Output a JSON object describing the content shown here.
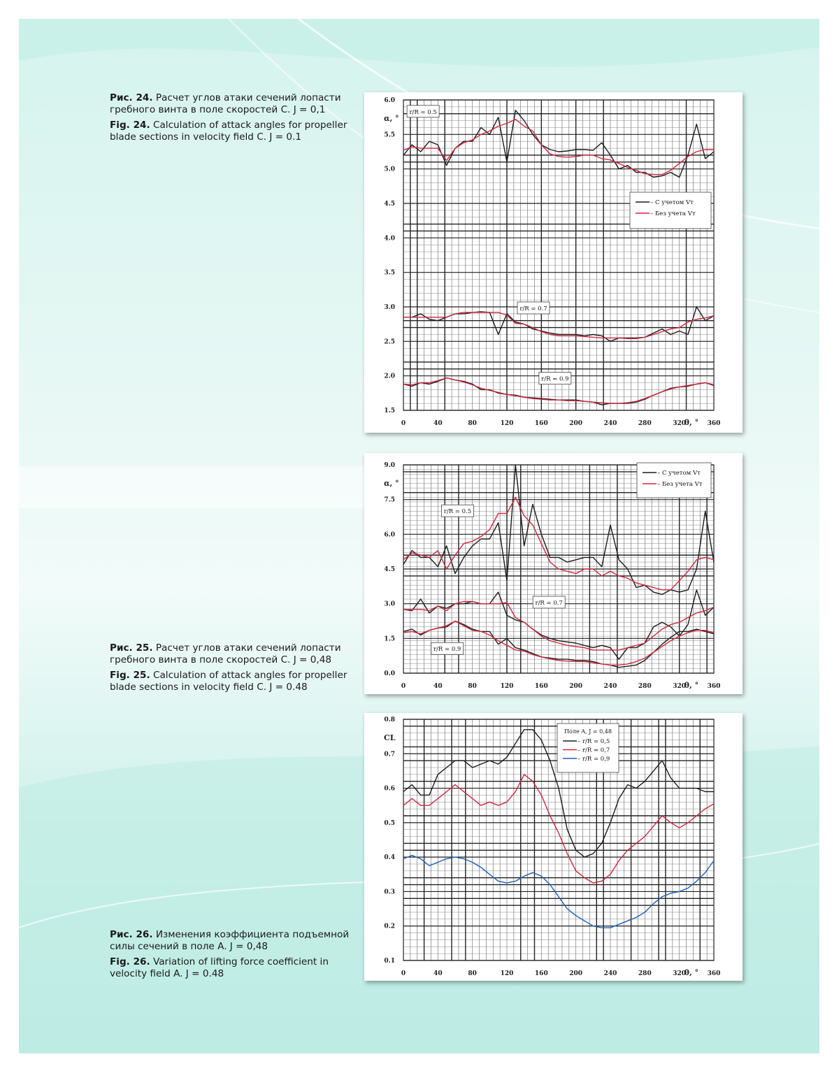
{
  "captions": [
    {
      "ru_label": "Рис. 24.",
      "ru_text": "Расчет углов атаки сечений лопасти гребного винта в поле скоростей C. J = 0,1",
      "en_label": "Fig. 24.",
      "en_text": "Calculation of attack angles for propeller blade sections in velocity field C. J = 0.1"
    },
    {
      "ru_label": "Рис. 25.",
      "ru_text": "Расчет углов атаки сечений лопасти гребного винта в поле скоростей C. J = 0,48",
      "en_label": "Fig. 25.",
      "en_text": "Calculation of attack angles for propeller blade sections in velocity field C. J = 0.48"
    },
    {
      "ru_label": "Рис. 26.",
      "ru_text": "Изменения коэффициента подъемной силы сечений в поле A. J = 0,48",
      "en_label": "Fig. 26.",
      "en_text": "Variation of lifting force coefficient in velocity field A. J = 0.48"
    }
  ],
  "chart_data": [
    {
      "type": "line",
      "title": "",
      "xlabel": "θ, °",
      "ylabel": "α, °",
      "xlim": [
        0,
        360
      ],
      "ylim": [
        1.5,
        6.0
      ],
      "grid": true,
      "xticks": [
        "0",
        "40",
        "80",
        "120",
        "160",
        "200",
        "240",
        "280",
        "320",
        "360"
      ],
      "yticks": [
        "1.5",
        "2.0",
        "2.5",
        "3.0",
        "3.5",
        "4.0",
        "4.5",
        "5.0",
        "5.5",
        "6.0"
      ],
      "legend": {
        "placement": "right",
        "entries": [
          "– С учетом Vт",
          "– Без учета Vт"
        ]
      },
      "annotations": [
        {
          "text": "r/R = 0.5",
          "x": 22,
          "y": 5.83
        },
        {
          "text": "r/R = 0.7",
          "x": 150,
          "y": 2.98
        },
        {
          "text": "r/R = 0.9",
          "x": 175,
          "y": 1.96
        }
      ],
      "x": [
        0,
        10,
        20,
        30,
        40,
        50,
        60,
        70,
        80,
        90,
        100,
        110,
        120,
        130,
        140,
        150,
        160,
        170,
        180,
        190,
        200,
        210,
        220,
        230,
        240,
        250,
        260,
        270,
        280,
        290,
        300,
        310,
        320,
        330,
        340,
        350,
        360
      ],
      "series": [
        {
          "name": "r/R = 0.5, с учетом Vт",
          "color": "#1c1c1c",
          "values": [
            5.2,
            5.35,
            5.25,
            5.4,
            5.35,
            5.05,
            5.3,
            5.4,
            5.4,
            5.6,
            5.5,
            5.75,
            5.1,
            5.85,
            5.7,
            5.5,
            5.35,
            5.28,
            5.25,
            5.26,
            5.28,
            5.28,
            5.27,
            5.38,
            5.2,
            5.0,
            5.05,
            4.95,
            4.95,
            4.88,
            4.9,
            4.95,
            4.88,
            5.2,
            5.65,
            5.15,
            5.25
          ]
        },
        {
          "name": "r/R = 0.5, без учета Vт",
          "color": "#d0283c",
          "values": [
            5.27,
            5.32,
            5.3,
            5.3,
            5.3,
            5.12,
            5.3,
            5.38,
            5.42,
            5.5,
            5.55,
            5.62,
            5.66,
            5.72,
            5.62,
            5.55,
            5.35,
            5.22,
            5.18,
            5.17,
            5.18,
            5.2,
            5.2,
            5.15,
            5.13,
            5.08,
            5.02,
            4.98,
            4.93,
            4.92,
            4.92,
            4.98,
            5.08,
            5.18,
            5.25,
            5.28,
            5.28
          ]
        },
        {
          "name": "r/R = 0.7, с учетом Vт",
          "color": "#1c1c1c",
          "values": [
            2.85,
            2.85,
            2.9,
            2.82,
            2.8,
            2.85,
            2.9,
            2.9,
            2.92,
            2.93,
            2.92,
            2.6,
            2.9,
            2.78,
            2.75,
            2.68,
            2.65,
            2.62,
            2.6,
            2.6,
            2.6,
            2.58,
            2.6,
            2.58,
            2.5,
            2.55,
            2.55,
            2.55,
            2.56,
            2.62,
            2.68,
            2.6,
            2.65,
            2.6,
            3.0,
            2.8,
            2.87
          ]
        },
        {
          "name": "r/R = 0.7, без учета Vт",
          "color": "#d0283c",
          "values": [
            2.85,
            2.85,
            2.85,
            2.85,
            2.85,
            2.85,
            2.9,
            2.92,
            2.92,
            2.92,
            2.92,
            2.92,
            2.88,
            2.76,
            2.75,
            2.7,
            2.64,
            2.6,
            2.58,
            2.58,
            2.58,
            2.57,
            2.56,
            2.55,
            2.55,
            2.55,
            2.54,
            2.54,
            2.56,
            2.6,
            2.64,
            2.68,
            2.7,
            2.78,
            2.82,
            2.84,
            2.87
          ]
        },
        {
          "name": "r/R = 0.9, с учетом Vт",
          "color": "#1c1c1c",
          "values": [
            1.88,
            1.85,
            1.9,
            1.88,
            1.92,
            1.97,
            1.94,
            1.92,
            1.88,
            1.8,
            1.8,
            1.75,
            1.73,
            1.72,
            1.69,
            1.68,
            1.67,
            1.66,
            1.65,
            1.65,
            1.65,
            1.63,
            1.62,
            1.58,
            1.6,
            1.6,
            1.6,
            1.62,
            1.66,
            1.72,
            1.77,
            1.82,
            1.84,
            1.85,
            1.88,
            1.9,
            1.86
          ]
        },
        {
          "name": "r/R = 0.9, без учета Vт",
          "color": "#d0283c",
          "values": [
            1.88,
            1.87,
            1.9,
            1.9,
            1.93,
            1.97,
            1.94,
            1.91,
            1.87,
            1.82,
            1.79,
            1.76,
            1.73,
            1.71,
            1.69,
            1.67,
            1.66,
            1.65,
            1.65,
            1.64,
            1.64,
            1.63,
            1.62,
            1.61,
            1.6,
            1.6,
            1.61,
            1.63,
            1.67,
            1.72,
            1.77,
            1.81,
            1.84,
            1.86,
            1.88,
            1.9,
            1.87
          ]
        }
      ]
    },
    {
      "type": "line",
      "title": "",
      "xlabel": "θ, °",
      "ylabel": "α, °",
      "xlim": [
        0,
        360
      ],
      "ylim": [
        0,
        9
      ],
      "grid": true,
      "xticks": [
        "0",
        "40",
        "80",
        "120",
        "160",
        "200",
        "240",
        "280",
        "320",
        "360"
      ],
      "yticks": [
        "0.0",
        "1.5",
        "3.0",
        "4.5",
        "6.0",
        "7.5",
        "9.0"
      ],
      "legend": {
        "placement": "top-right",
        "entries": [
          "– С учетом Vт",
          "– Без учета Vт"
        ]
      },
      "annotations": [
        {
          "text": "r/R = 0.5",
          "x": 62,
          "y": 7.0
        },
        {
          "text": "r/R = 0.7",
          "x": 168,
          "y": 3.05
        },
        {
          "text": "r/R = 0.9",
          "x": 50,
          "y": 1.05
        }
      ],
      "x": [
        0,
        10,
        20,
        30,
        40,
        50,
        60,
        70,
        80,
        90,
        100,
        110,
        120,
        130,
        140,
        150,
        160,
        170,
        180,
        190,
        200,
        210,
        220,
        230,
        240,
        250,
        260,
        270,
        280,
        290,
        300,
        310,
        320,
        330,
        340,
        350,
        360
      ],
      "series": [
        {
          "name": "r/R = 0.5, с учетом Vт",
          "color": "#1c1c1c",
          "values": [
            4.7,
            5.3,
            5.0,
            5.0,
            4.6,
            5.5,
            4.3,
            5.0,
            5.5,
            5.8,
            5.8,
            6.5,
            4.0,
            9.0,
            5.5,
            7.3,
            6.0,
            5.0,
            5.0,
            4.8,
            4.9,
            5.0,
            5.0,
            4.6,
            6.4,
            4.9,
            4.5,
            3.7,
            3.8,
            3.5,
            3.4,
            3.6,
            3.5,
            3.6,
            4.5,
            7.0,
            4.8
          ]
        },
        {
          "name": "r/R = 0.5, без учета Vт",
          "color": "#d0283c",
          "values": [
            4.9,
            5.2,
            5.1,
            5.0,
            5.3,
            4.5,
            5.1,
            5.6,
            5.7,
            5.9,
            6.2,
            6.9,
            6.9,
            7.6,
            6.8,
            6.4,
            5.6,
            4.8,
            4.5,
            4.4,
            4.3,
            4.5,
            4.5,
            4.2,
            4.4,
            4.2,
            4.1,
            3.9,
            3.8,
            3.7,
            3.6,
            3.6,
            4.0,
            4.4,
            4.9,
            5.0,
            4.9
          ]
        },
        {
          "name": "r/R = 0.7, с учетом Vт",
          "color": "#1c1c1c",
          "values": [
            2.75,
            2.7,
            3.2,
            2.6,
            2.9,
            2.8,
            3.0,
            3.0,
            3.1,
            3.0,
            3.0,
            3.5,
            2.5,
            2.3,
            2.2,
            1.9,
            1.65,
            1.5,
            1.4,
            1.35,
            1.3,
            1.2,
            1.1,
            1.2,
            1.1,
            0.6,
            1.1,
            1.1,
            1.3,
            2.0,
            2.2,
            2.0,
            1.6,
            2.1,
            3.6,
            2.5,
            2.85
          ]
        },
        {
          "name": "r/R = 0.7, без учета Vт",
          "color": "#d0283c",
          "values": [
            2.75,
            2.75,
            2.75,
            2.7,
            2.9,
            2.7,
            3.0,
            3.1,
            3.1,
            3.0,
            3.0,
            3.0,
            3.05,
            2.4,
            2.2,
            1.9,
            1.6,
            1.4,
            1.3,
            1.2,
            1.15,
            1.1,
            1.0,
            1.0,
            1.0,
            1.0,
            1.1,
            1.2,
            1.3,
            1.6,
            1.9,
            2.1,
            2.2,
            2.4,
            2.6,
            2.7,
            2.85
          ]
        },
        {
          "name": "r/R = 0.9, с учетом Vт",
          "color": "#1c1c1c",
          "values": [
            1.8,
            1.9,
            1.65,
            1.85,
            1.95,
            2.0,
            2.25,
            2.1,
            1.9,
            1.8,
            1.8,
            1.25,
            1.5,
            1.1,
            1.0,
            0.85,
            0.7,
            0.65,
            0.6,
            0.6,
            0.55,
            0.55,
            0.5,
            0.4,
            0.35,
            0.25,
            0.3,
            0.35,
            0.55,
            0.9,
            1.25,
            1.55,
            1.8,
            1.8,
            1.9,
            1.8,
            1.7
          ]
        },
        {
          "name": "r/R = 0.9, без учета Vт",
          "color": "#d0283c",
          "values": [
            1.75,
            1.8,
            1.7,
            1.85,
            1.95,
            2.05,
            2.25,
            2.05,
            1.85,
            1.8,
            1.65,
            1.4,
            1.2,
            1.0,
            0.95,
            0.8,
            0.7,
            0.62,
            0.55,
            0.52,
            0.5,
            0.5,
            0.45,
            0.4,
            0.35,
            0.35,
            0.4,
            0.5,
            0.65,
            0.9,
            1.15,
            1.4,
            1.6,
            1.75,
            1.85,
            1.85,
            1.75
          ]
        }
      ]
    },
    {
      "type": "line",
      "title": "",
      "xlabel": "θ, °",
      "ylabel": "CL",
      "xlim": [
        0,
        360
      ],
      "ylim": [
        0.1,
        0.8
      ],
      "grid": true,
      "xticks": [
        "0",
        "40",
        "80",
        "120",
        "160",
        "200",
        "240",
        "280",
        "320",
        "360"
      ],
      "yticks": [
        "0.1",
        "0.2",
        "0.3",
        "0.4",
        "0.5",
        "0.6",
        "0.7",
        "0.8"
      ],
      "legend": {
        "placement": "top-right",
        "title": "Поле A, J = 0,48",
        "entries": [
          "– r/R = 0,5",
          "– r/R = 0,7",
          "– r/R = 0,9"
        ]
      },
      "x": [
        0,
        10,
        20,
        30,
        40,
        50,
        60,
        70,
        80,
        90,
        100,
        110,
        120,
        130,
        140,
        150,
        160,
        170,
        180,
        190,
        200,
        210,
        220,
        230,
        240,
        250,
        260,
        270,
        280,
        290,
        300,
        310,
        320,
        330,
        340,
        350,
        360
      ],
      "series": [
        {
          "name": "r/R = 0,5",
          "color": "#1c1c1c",
          "values": [
            0.59,
            0.61,
            0.58,
            0.58,
            0.64,
            0.66,
            0.68,
            0.68,
            0.66,
            0.67,
            0.68,
            0.67,
            0.69,
            0.73,
            0.77,
            0.77,
            0.74,
            0.68,
            0.6,
            0.48,
            0.42,
            0.4,
            0.41,
            0.44,
            0.5,
            0.57,
            0.61,
            0.6,
            0.62,
            0.65,
            0.68,
            0.63,
            0.6,
            0.6,
            0.6,
            0.59,
            0.59
          ]
        },
        {
          "name": "r/R = 0,7",
          "color": "#d0283c",
          "values": [
            0.55,
            0.57,
            0.55,
            0.55,
            0.57,
            0.59,
            0.61,
            0.59,
            0.57,
            0.55,
            0.56,
            0.55,
            0.56,
            0.59,
            0.64,
            0.62,
            0.58,
            0.52,
            0.47,
            0.41,
            0.36,
            0.34,
            0.325,
            0.33,
            0.35,
            0.39,
            0.42,
            0.44,
            0.46,
            0.49,
            0.52,
            0.5,
            0.485,
            0.5,
            0.52,
            0.54,
            0.555
          ]
        },
        {
          "name": "r/R = 0,9",
          "color": "#1f5fb4",
          "values": [
            0.395,
            0.405,
            0.395,
            0.375,
            0.385,
            0.395,
            0.4,
            0.395,
            0.385,
            0.37,
            0.35,
            0.33,
            0.325,
            0.33,
            0.345,
            0.355,
            0.345,
            0.32,
            0.285,
            0.25,
            0.23,
            0.215,
            0.2,
            0.195,
            0.195,
            0.205,
            0.215,
            0.225,
            0.24,
            0.265,
            0.285,
            0.295,
            0.3,
            0.31,
            0.33,
            0.355,
            0.39
          ]
        }
      ]
    }
  ]
}
